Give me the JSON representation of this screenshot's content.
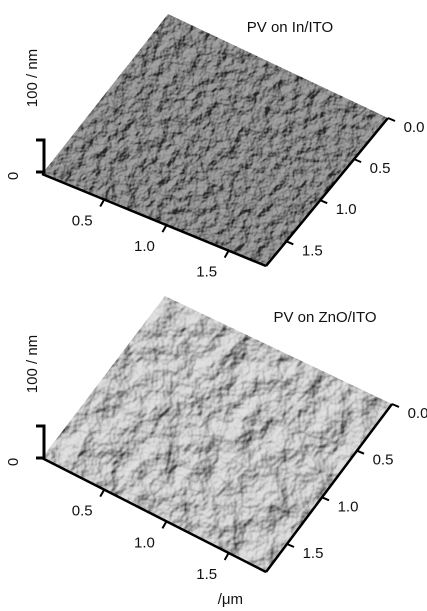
{
  "panels": [
    {
      "title": "PV on In/ITO",
      "z_label": "100 / nm",
      "z_tick": "0",
      "x_ticks": [
        "0.5",
        "1.0",
        "1.5"
      ],
      "y_ticks": [
        "0.0",
        "0.5",
        "1.0",
        "1.5"
      ]
    },
    {
      "title": "PV on ZnO/ITO",
      "z_label": "100 / nm",
      "z_tick": "0",
      "x_ticks": [
        "0.5",
        "1.0",
        "1.5"
      ],
      "y_ticks": [
        "0.0",
        "0.5",
        "1.0",
        "1.5"
      ]
    }
  ],
  "x_unit": "/μm"
}
